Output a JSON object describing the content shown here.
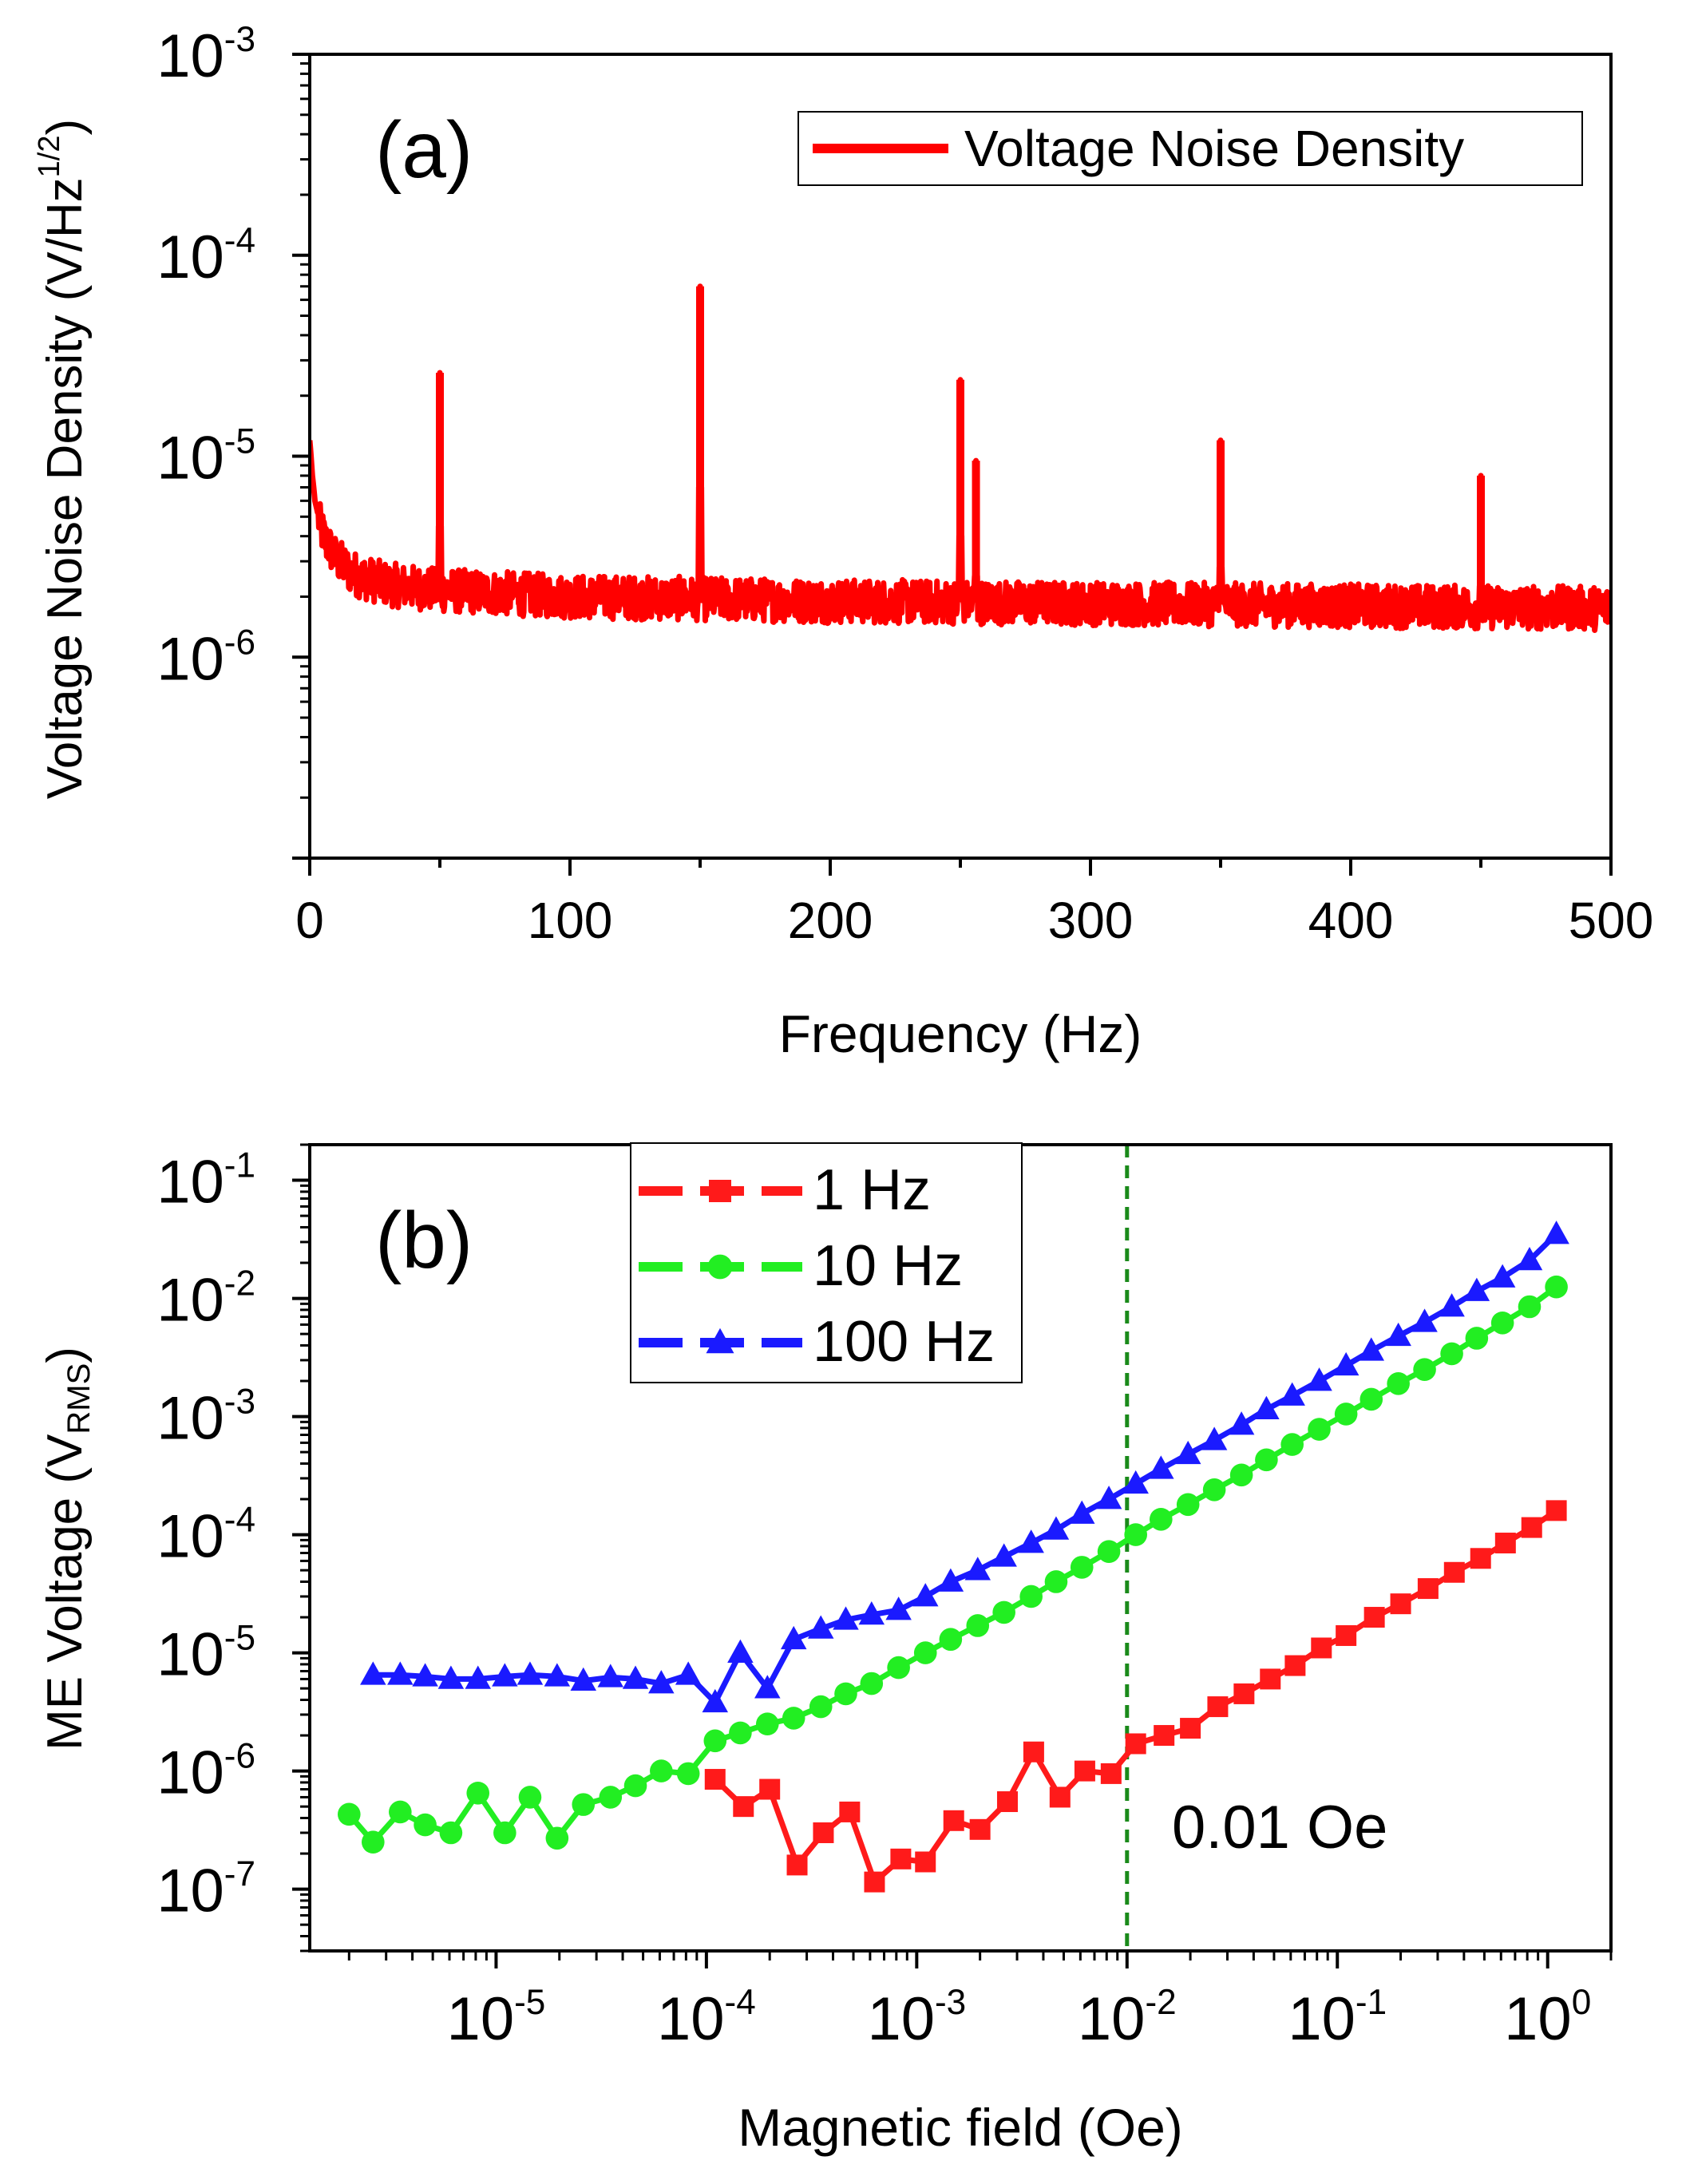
{
  "chart_data": [
    {
      "type": "line",
      "panel_label": "(a)",
      "xlabel": "Frequency (Hz)",
      "ylabel_main": "Voltage Noise Density (V/Hz",
      "ylabel_sup": "1/2",
      "ylabel_end": ")",
      "xlim": [
        0,
        500
      ],
      "ylim": [
        1e-07,
        0.001
      ],
      "yscale": "log",
      "x_ticks": [
        "0",
        "100",
        "200",
        "300",
        "400",
        "500"
      ],
      "y_ticks": [
        {
          "base": "10",
          "exp": "-3"
        },
        {
          "base": "10",
          "exp": "-4"
        },
        {
          "base": "10",
          "exp": "-5"
        },
        {
          "base": "10",
          "exp": "-6"
        }
      ],
      "legend_position": "top-right",
      "series": [
        {
          "name": "Voltage Noise Density",
          "color": "#ff0000",
          "baseline": [
            [
              0,
              1.2e-05
            ],
            [
              1,
              8e-06
            ],
            [
              2,
              6e-06
            ],
            [
              4,
              4.5e-06
            ],
            [
              6,
              3.8e-06
            ],
            [
              10,
              3.1e-06
            ],
            [
              15,
              2.7e-06
            ],
            [
              20,
              2.5e-06
            ],
            [
              30,
              2.3e-06
            ],
            [
              50,
              2.15e-06
            ],
            [
              100,
              2e-06
            ],
            [
              200,
              1.9e-06
            ],
            [
              300,
              1.85e-06
            ],
            [
              400,
              1.8e-06
            ],
            [
              500,
              1.75e-06
            ]
          ],
          "peaks": [
            {
              "x": 50,
              "y": 2.6e-05
            },
            {
              "x": 150,
              "y": 7e-05
            },
            {
              "x": 250,
              "y": 2.4e-05
            },
            {
              "x": 256,
              "y": 9.5e-06
            },
            {
              "x": 350,
              "y": 1.2e-05
            },
            {
              "x": 450,
              "y": 8e-06
            }
          ]
        }
      ]
    },
    {
      "type": "line",
      "panel_label": "(b)",
      "xlabel": "Magnetic field (Oe)",
      "ylabel_main": "ME Voltage (V",
      "ylabel_sub": "RMS",
      "ylabel_end": ")",
      "xscale": "log",
      "yscale": "log",
      "xlim": [
        1.3e-06,
        2.0
      ],
      "ylim": [
        3e-08,
        0.2
      ],
      "x_ticks": [
        {
          "base": "10",
          "exp": "-5"
        },
        {
          "base": "10",
          "exp": "-4"
        },
        {
          "base": "10",
          "exp": "-3"
        },
        {
          "base": "10",
          "exp": "-2"
        },
        {
          "base": "10",
          "exp": "-1"
        },
        {
          "base": "10",
          "exp": "0"
        }
      ],
      "y_ticks": [
        {
          "base": "10",
          "exp": "-1"
        },
        {
          "base": "10",
          "exp": "-2"
        },
        {
          "base": "10",
          "exp": "-3"
        },
        {
          "base": "10",
          "exp": "-4"
        },
        {
          "base": "10",
          "exp": "-5"
        },
        {
          "base": "10",
          "exp": "-6"
        },
        {
          "base": "10",
          "exp": "-7"
        }
      ],
      "legend_position": "top-left",
      "reference_line": {
        "x": 0.01,
        "label": "0.01 Oe",
        "color": "#1a8a1a"
      },
      "series": [
        {
          "name": "1 Hz",
          "marker": "square",
          "color": "#ff1a1a",
          "x": [
            0.00011,
            0.00015,
            0.0002,
            0.00027,
            0.00036,
            0.00048,
            0.00063,
            0.00084,
            0.0011,
            0.0015,
            0.002,
            0.0027,
            0.0036,
            0.0048,
            0.0063,
            0.0084,
            0.011,
            0.015,
            0.02,
            0.027,
            0.036,
            0.048,
            0.063,
            0.084,
            0.11,
            0.15,
            0.2,
            0.27,
            0.36,
            0.48,
            0.63,
            0.84,
            1.1
          ],
          "y": [
            8.5e-07,
            5e-07,
            7e-07,
            1.6e-07,
            3e-07,
            4.5e-07,
            1.15e-07,
            1.8e-07,
            1.7e-07,
            3.8e-07,
            3.2e-07,
            5.5e-07,
            1.45e-06,
            6e-07,
            1e-06,
            9.5e-07,
            1.7e-06,
            2e-06,
            2.3e-06,
            3.5e-06,
            4.5e-06,
            6e-06,
            7.8e-06,
            1.1e-05,
            1.4e-05,
            2e-05,
            2.6e-05,
            3.5e-05,
            4.8e-05,
            6.3e-05,
            8.5e-05,
            0.000115,
            0.00016
          ]
        },
        {
          "name": "10 Hz",
          "marker": "circle",
          "color": "#22ee22",
          "x": [
            2e-06,
            2.6e-06,
            3.5e-06,
            4.6e-06,
            6.1e-06,
            8.2e-06,
            1.1e-05,
            1.45e-05,
            1.95e-05,
            2.6e-05,
            3.5e-05,
            4.6e-05,
            6.1e-05,
            8.2e-05,
            0.00011,
            0.000145,
            0.000195,
            0.00026,
            0.00035,
            0.00046,
            0.00061,
            0.00082,
            0.0011,
            0.00145,
            0.00195,
            0.0026,
            0.0035,
            0.0046,
            0.0061,
            0.0082,
            0.011,
            0.0145,
            0.0195,
            0.026,
            0.035,
            0.046,
            0.061,
            0.082,
            0.11,
            0.145,
            0.195,
            0.26,
            0.35,
            0.46,
            0.61,
            0.82,
            1.1
          ],
          "y": [
            4.3e-07,
            2.5e-07,
            4.5e-07,
            3.5e-07,
            3e-07,
            6.5e-07,
            3e-07,
            6e-07,
            2.7e-07,
            5.2e-07,
            6e-07,
            7.5e-07,
            1e-06,
            9.5e-07,
            1.8e-06,
            2.1e-06,
            2.5e-06,
            2.8e-06,
            3.5e-06,
            4.5e-06,
            5.5e-06,
            7.5e-06,
            1e-05,
            1.3e-05,
            1.7e-05,
            2.2e-05,
            3e-05,
            4e-05,
            5.3e-05,
            7.2e-05,
            0.0001,
            0.000135,
            0.00018,
            0.00024,
            0.00032,
            0.00043,
            0.00058,
            0.00078,
            0.00105,
            0.0014,
            0.0019,
            0.0025,
            0.0034,
            0.0046,
            0.0062,
            0.0085,
            0.0125
          ]
        },
        {
          "name": "100 Hz",
          "marker": "triangle",
          "color": "#1a1aff",
          "x": [
            2.6e-06,
            3.5e-06,
            4.6e-06,
            6.1e-06,
            8.2e-06,
            1.1e-05,
            1.45e-05,
            1.95e-05,
            2.6e-05,
            3.5e-05,
            4.6e-05,
            6.1e-05,
            8.2e-05,
            0.00011,
            0.000145,
            0.000195,
            0.00026,
            0.00035,
            0.00046,
            0.00061,
            0.00082,
            0.0011,
            0.00145,
            0.00195,
            0.0026,
            0.0035,
            0.0046,
            0.0061,
            0.0082,
            0.011,
            0.0145,
            0.0195,
            0.026,
            0.035,
            0.046,
            0.061,
            0.082,
            0.11,
            0.145,
            0.195,
            0.26,
            0.35,
            0.46,
            0.61,
            0.82,
            1.1
          ],
          "y": [
            6.5e-06,
            6.5e-06,
            6.3e-06,
            6e-06,
            6e-06,
            6.3e-06,
            6.5e-06,
            6.3e-06,
            5.8e-06,
            6.2e-06,
            6e-06,
            5.5e-06,
            6.5e-06,
            3.8e-06,
            1e-05,
            5e-06,
            1.3e-05,
            1.6e-05,
            1.9e-05,
            2.1e-05,
            2.3e-05,
            3e-05,
            4e-05,
            5e-05,
            6.5e-05,
            8.5e-05,
            0.00011,
            0.00015,
            0.0002,
            0.00027,
            0.00036,
            0.00048,
            0.00063,
            0.00085,
            0.00115,
            0.0015,
            0.002,
            0.0027,
            0.0036,
            0.0048,
            0.0063,
            0.0085,
            0.0115,
            0.015,
            0.021,
            0.035
          ]
        }
      ]
    }
  ]
}
